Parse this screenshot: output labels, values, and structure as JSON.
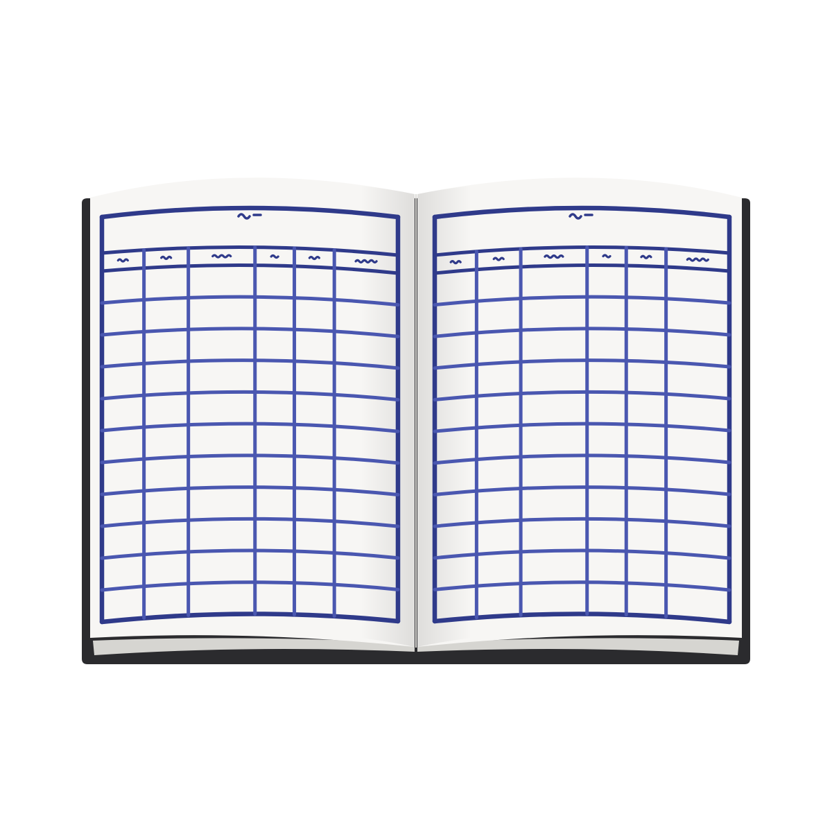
{
  "illustration": {
    "subject": "open-ledger-book",
    "page_count": 2,
    "columns_per_page": 6,
    "body_rows_per_page": 11,
    "handwritten_placeholder_text": true,
    "colors": {
      "background": "#ffffff",
      "cover_shadow": "#2b2b2e",
      "paper": "#f7f6f4",
      "page_edge": "#e4e3df",
      "page_edge_dark": "#d6d5d1",
      "ink": "#4a57b0",
      "ink_dark": "#2f3a8a"
    }
  }
}
